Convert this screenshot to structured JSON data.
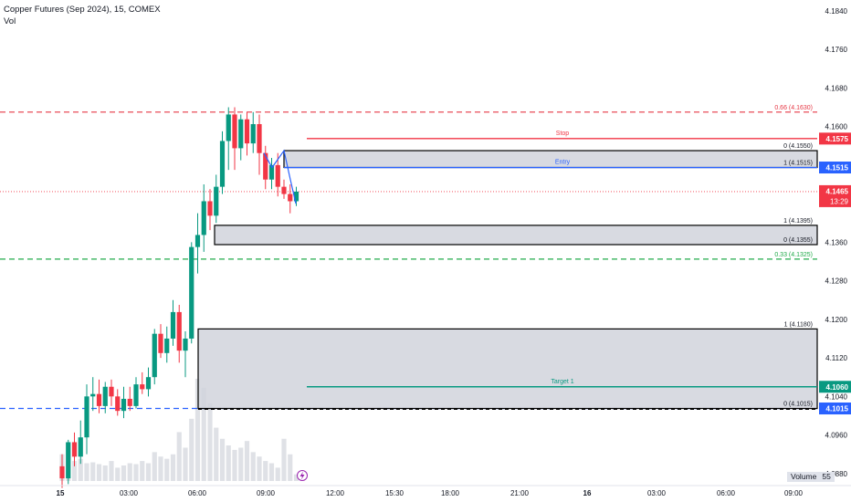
{
  "header": {
    "symbol_line": "Copper Futures (Sep 2024), 15, COMEX",
    "study_label": "Vol"
  },
  "colors": {
    "up": "#089981",
    "down": "#f23645",
    "line_blue": "#2962ff",
    "red_dash": "#e63946",
    "green_dash": "#22ab4b",
    "target": "#089981",
    "stop": "#f23645",
    "zone_fill": "#d1d4dc"
  },
  "chart_data": {
    "type": "candlestick",
    "ylim": [
      4.0855,
      4.1855
    ],
    "y_ticks": [
      "4.1840",
      "4.1760",
      "4.1680",
      "4.1600",
      "4.1520",
      "4.1440",
      "4.1360",
      "4.1280",
      "4.1200",
      "4.1120",
      "4.1040",
      "4.0960",
      "4.0880"
    ],
    "x_ticks": [
      "15",
      "03:00",
      "06:00",
      "09:00",
      "12:00",
      "15:30",
      "18:00",
      "21:00",
      "16",
      "03:00",
      "06:00",
      "09:00"
    ],
    "price_labels": [
      {
        "text": "4.1575",
        "value": 4.1575,
        "color": "#f23645"
      },
      {
        "text": "4.1515",
        "value": 4.1515,
        "color": "#2962ff"
      },
      {
        "text": "4.1465",
        "sub": "13:29",
        "value": 4.1465,
        "color": "#f23645"
      },
      {
        "text": "4.1060",
        "value": 4.106,
        "color": "#089981"
      },
      {
        "text": "4.1015",
        "value": 4.1015,
        "color": "#2962ff"
      }
    ],
    "horizontal_levels": [
      {
        "label": "0.66 (4.1630)",
        "value": 4.163,
        "style": "dashed",
        "color": "#e63946"
      },
      {
        "label": "0.33 (4.1325)",
        "value": 4.1325,
        "style": "dashed",
        "color": "#22ab4b"
      },
      {
        "label": "",
        "value": 4.1015,
        "style": "dashed",
        "color": "#2962ff"
      }
    ],
    "zones": [
      {
        "top_label": "0 (4.1550)",
        "bottom_label": "1 (4.1515)",
        "top": 4.155,
        "bottom": 4.1515
      },
      {
        "top_label": "1 (4.1395)",
        "bottom_label": "0 (4.1355)",
        "top": 4.1395,
        "bottom": 4.1355
      },
      {
        "top_label": "1 (4.1180)",
        "bottom_label": "0 (4.1015)",
        "top": 4.118,
        "bottom": 4.1015
      }
    ],
    "trade_lines": [
      {
        "name": "Stop",
        "value": 4.1575
      },
      {
        "name": "Entry",
        "value": 4.1515
      },
      {
        "name": "Target 1",
        "value": 4.106
      }
    ],
    "candles": [
      {
        "o": 4.0895,
        "h": 4.092,
        "l": 4.085,
        "c": 4.087
      },
      {
        "o": 4.087,
        "h": 4.095,
        "l": 4.0858,
        "c": 4.0945
      },
      {
        "o": 4.0945,
        "h": 4.0965,
        "l": 4.0895,
        "c": 4.0915
      },
      {
        "o": 4.0915,
        "h": 4.099,
        "l": 4.09,
        "c": 4.0955
      },
      {
        "o": 4.0955,
        "h": 4.1065,
        "l": 4.092,
        "c": 4.104
      },
      {
        "o": 4.104,
        "h": 4.108,
        "l": 4.101,
        "c": 4.1045
      },
      {
        "o": 4.1045,
        "h": 4.1075,
        "l": 4.1005,
        "c": 4.102
      },
      {
        "o": 4.102,
        "h": 4.107,
        "l": 4.1005,
        "c": 4.106
      },
      {
        "o": 4.106,
        "h": 4.1075,
        "l": 4.102,
        "c": 4.104
      },
      {
        "o": 4.104,
        "h": 4.1055,
        "l": 4.1,
        "c": 4.101
      },
      {
        "o": 4.101,
        "h": 4.106,
        "l": 4.0995,
        "c": 4.1035
      },
      {
        "o": 4.1035,
        "h": 4.106,
        "l": 4.101,
        "c": 4.102
      },
      {
        "o": 4.102,
        "h": 4.108,
        "l": 4.1015,
        "c": 4.1065
      },
      {
        "o": 4.1065,
        "h": 4.109,
        "l": 4.1045,
        "c": 4.1055
      },
      {
        "o": 4.1055,
        "h": 4.11,
        "l": 4.104,
        "c": 4.108
      },
      {
        "o": 4.108,
        "h": 4.118,
        "l": 4.1065,
        "c": 4.117
      },
      {
        "o": 4.117,
        "h": 4.119,
        "l": 4.112,
        "c": 4.113
      },
      {
        "o": 4.113,
        "h": 4.1185,
        "l": 4.111,
        "c": 4.116
      },
      {
        "o": 4.116,
        "h": 4.124,
        "l": 4.1145,
        "c": 4.1215
      },
      {
        "o": 4.1215,
        "h": 4.123,
        "l": 4.111,
        "c": 4.1135
      },
      {
        "o": 4.1135,
        "h": 4.1175,
        "l": 4.108,
        "c": 4.116
      },
      {
        "o": 4.116,
        "h": 4.136,
        "l": 4.115,
        "c": 4.135
      },
      {
        "o": 4.135,
        "h": 4.142,
        "l": 4.1295,
        "c": 4.1375
      },
      {
        "o": 4.1375,
        "h": 4.148,
        "l": 4.134,
        "c": 4.1445
      },
      {
        "o": 4.1445,
        "h": 4.147,
        "l": 4.1385,
        "c": 4.1415
      },
      {
        "o": 4.1415,
        "h": 4.15,
        "l": 4.14,
        "c": 4.1475
      },
      {
        "o": 4.1475,
        "h": 4.159,
        "l": 4.146,
        "c": 4.157
      },
      {
        "o": 4.157,
        "h": 4.164,
        "l": 4.151,
        "c": 4.1625
      },
      {
        "o": 4.1625,
        "h": 4.164,
        "l": 4.151,
        "c": 4.1555
      },
      {
        "o": 4.1555,
        "h": 4.1625,
        "l": 4.153,
        "c": 4.1615
      },
      {
        "o": 4.1615,
        "h": 4.163,
        "l": 4.154,
        "c": 4.1565
      },
      {
        "o": 4.1565,
        "h": 4.163,
        "l": 4.1545,
        "c": 4.1605
      },
      {
        "o": 4.1605,
        "h": 4.1625,
        "l": 4.15,
        "c": 4.1545
      },
      {
        "o": 4.1545,
        "h": 4.156,
        "l": 4.147,
        "c": 4.149
      },
      {
        "o": 4.149,
        "h": 4.1535,
        "l": 4.147,
        "c": 4.152
      },
      {
        "o": 4.152,
        "h": 4.1545,
        "l": 4.1455,
        "c": 4.1475
      },
      {
        "o": 4.1475,
        "h": 4.149,
        "l": 4.145,
        "c": 4.146
      },
      {
        "o": 4.146,
        "h": 4.148,
        "l": 4.142,
        "c": 4.1445
      },
      {
        "o": 4.1445,
        "h": 4.1475,
        "l": 4.1435,
        "c": 4.1465
      }
    ],
    "volume": {
      "label": "Volume",
      "value": "55",
      "bars": [
        60,
        85,
        45,
        50,
        40,
        42,
        38,
        35,
        45,
        30,
        35,
        40,
        38,
        45,
        40,
        65,
        55,
        50,
        60,
        110,
        75,
        140,
        230,
        210,
        175,
        120,
        95,
        80,
        70,
        75,
        90,
        65,
        55,
        45,
        40,
        30,
        95,
        60,
        15
      ]
    },
    "path_overlay": [
      4.1545,
      4.1515,
      4.155,
      4.149,
      4.144
    ]
  }
}
